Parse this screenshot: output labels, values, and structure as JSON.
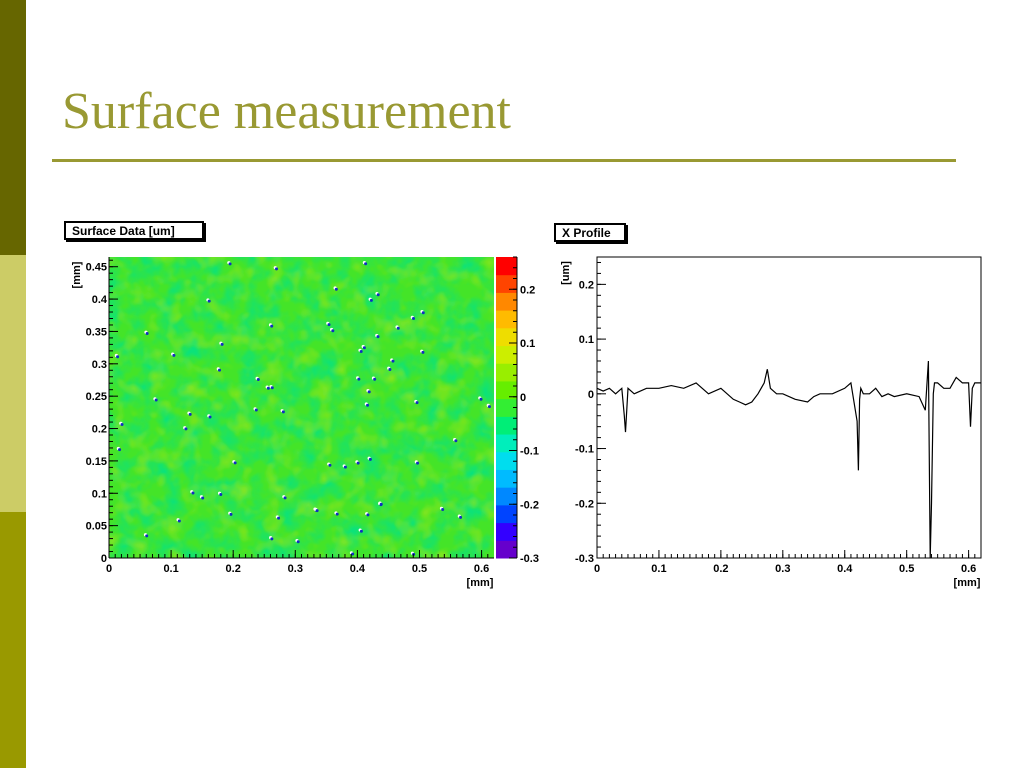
{
  "slide": {
    "title": "Surface measurement",
    "colors": {
      "accent": "#999933",
      "band_dark": "#666600",
      "band_light": "#cccc66",
      "band_olive": "#999900"
    }
  },
  "chart_data": [
    {
      "type": "heatmap",
      "title": "Surface Data [um]",
      "xlabel": "[mm]",
      "ylabel": "[mm]",
      "xlim": [
        0,
        0.62
      ],
      "ylim": [
        0,
        0.465
      ],
      "x_ticks": [
        "0",
        "0.1",
        "0.2",
        "0.3",
        "0.4",
        "0.5",
        "0.6"
      ],
      "y_ticks": [
        "0",
        "0.05",
        "0.1",
        "0.15",
        "0.2",
        "0.25",
        "0.3",
        "0.35",
        "0.4",
        "0.45"
      ],
      "colorbar": {
        "range": [
          -0.3,
          0.26
        ],
        "ticks": [
          "-0.3",
          "-0.2",
          "-0.1",
          "0",
          "0.1",
          "0.2"
        ],
        "colors": [
          "#6600cc",
          "#3300ff",
          "#0044ff",
          "#0088ff",
          "#00bbff",
          "#00ddee",
          "#00eebb",
          "#00ee77",
          "#33ee33",
          "#66ee00",
          "#99ee00",
          "#ccee00",
          "#eedd00",
          "#ffbb00",
          "#ff8800",
          "#ff4400",
          "#ff0000"
        ]
      },
      "dominant_value": 0.0,
      "grid": false
    },
    {
      "type": "line",
      "title": "X Profile",
      "xlabel": "[mm]",
      "ylabel": "[um]",
      "xlim": [
        0,
        0.62
      ],
      "ylim": [
        -0.3,
        0.25
      ],
      "x_ticks": [
        "0",
        "0.1",
        "0.2",
        "0.3",
        "0.4",
        "0.5",
        "0.6"
      ],
      "y_ticks": [
        "-0.3",
        "-0.2",
        "-0.1",
        "0",
        "0.1",
        "0.2"
      ],
      "series": [
        {
          "x": [
            0,
            0.01,
            0.02,
            0.03,
            0.04,
            0.044,
            0.046,
            0.05,
            0.06,
            0.08,
            0.1,
            0.12,
            0.14,
            0.16,
            0.18,
            0.2,
            0.22,
            0.23,
            0.24,
            0.25,
            0.26,
            0.27,
            0.275,
            0.28,
            0.29,
            0.3,
            0.32,
            0.34,
            0.35,
            0.36,
            0.38,
            0.4,
            0.41,
            0.42,
            0.422,
            0.424,
            0.426,
            0.43,
            0.44,
            0.45,
            0.46,
            0.47,
            0.48,
            0.5,
            0.52,
            0.53,
            0.535,
            0.538,
            0.54,
            0.543,
            0.545,
            0.55,
            0.56,
            0.57,
            0.58,
            0.59,
            0.6,
            0.603,
            0.606,
            0.61,
            0.62
          ],
          "y": [
            0.01,
            0.005,
            0.01,
            0.0,
            0.01,
            -0.04,
            -0.07,
            0.01,
            0.0,
            0.01,
            0.01,
            0.015,
            0.01,
            0.02,
            0.0,
            0.01,
            -0.01,
            -0.015,
            -0.02,
            -0.015,
            0.0,
            0.02,
            0.045,
            0.01,
            0.0,
            0.0,
            -0.01,
            -0.015,
            -0.005,
            0.0,
            0.0,
            0.01,
            0.02,
            -0.05,
            -0.14,
            -0.01,
            0.01,
            0.0,
            0.0,
            0.01,
            -0.005,
            0.0,
            -0.005,
            0.0,
            -0.005,
            -0.03,
            0.06,
            -0.3,
            -0.2,
            0.0,
            0.02,
            0.02,
            0.01,
            0.01,
            0.03,
            0.02,
            0.02,
            -0.06,
            0.01,
            0.02,
            0.02
          ]
        }
      ],
      "grid": false
    }
  ]
}
